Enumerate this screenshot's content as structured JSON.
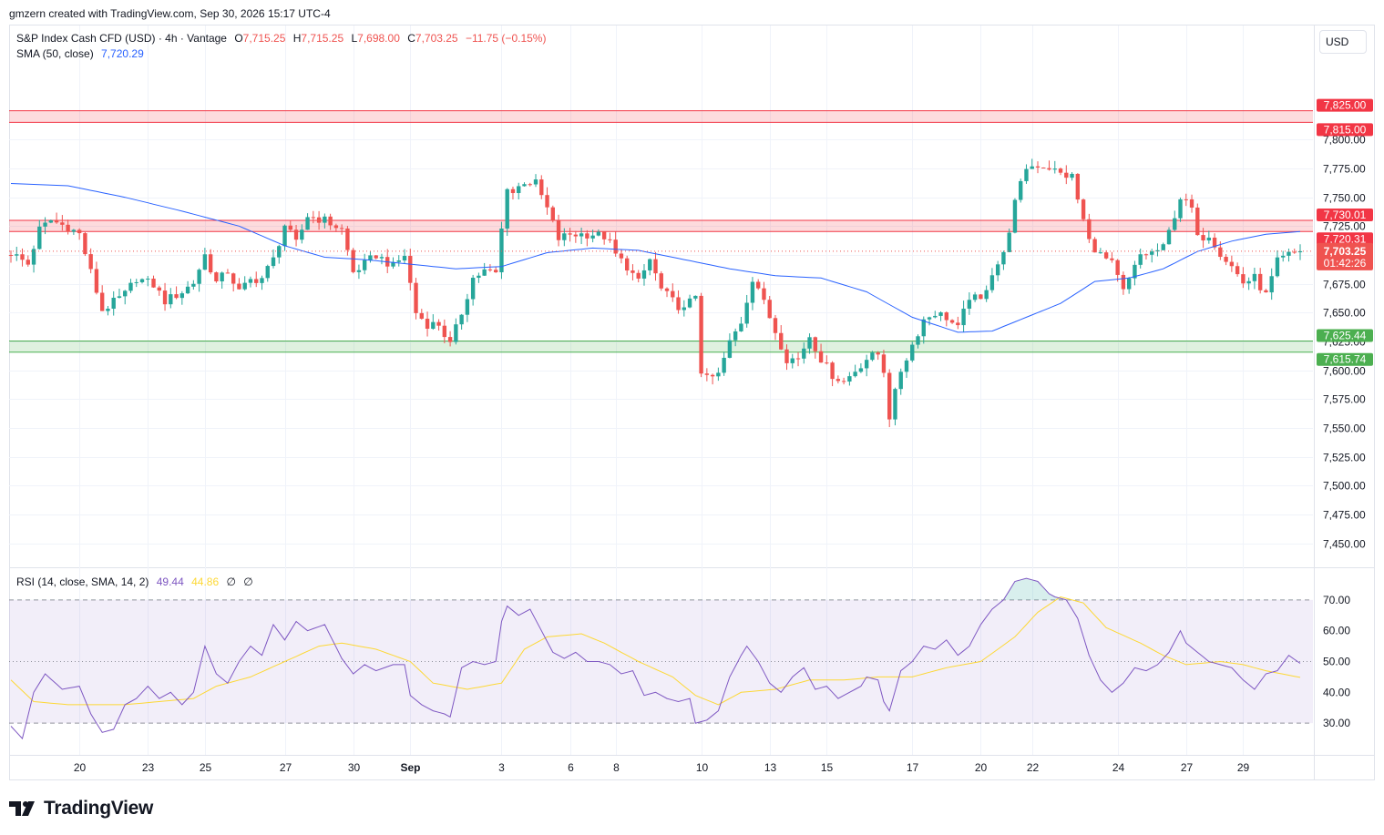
{
  "header": {
    "attribution": "gmzern created with TradingView.com, Sep 30, 2026 15:17 UTC-4",
    "symbol": "S&P Index Cash CFD (USD) · 4h · Vantage",
    "ohlc": {
      "o_label": "O",
      "o": "7,715.25",
      "h_label": "H",
      "h": "7,715.25",
      "l_label": "L",
      "l": "7,698.00",
      "c_label": "C",
      "c": "7,703.25",
      "change": "−11.75 (−0.15%)"
    },
    "sma_label": "SMA (50, close)",
    "sma_value": "7,720.29"
  },
  "rsi_legend": {
    "label": "RSI (14, close, SMA, 14, 2)",
    "rsi_value": "49.44",
    "rsi_sma_value": "44.86",
    "extra1": "∅",
    "extra2": "∅"
  },
  "currency_button": "USD",
  "brand": "TradingView",
  "colors": {
    "up": "#26a69a",
    "down": "#ef5350",
    "sma": "#2962ff",
    "rsi": "#7e57c2",
    "rsi_sma": "#fdd835",
    "resistance_zone": "#f23645",
    "support_zone": "#4caf50"
  },
  "chart_data": [
    {
      "type": "candlestick",
      "title": "",
      "ylim": [
        7430,
        7850
      ],
      "yticks": [
        "7,450.00",
        "7,475.00",
        "7,500.00",
        "7,525.00",
        "7,550.00",
        "7,575.00",
        "7,600.00",
        "7,625.00",
        "7,650.00",
        "7,675.00",
        "7,700.00",
        "7,725.00",
        "7,750.00",
        "7,775.00",
        "7,800.00"
      ],
      "ytick_values": [
        7450,
        7475,
        7500,
        7525,
        7550,
        7575,
        7600,
        7625,
        7650,
        7675,
        7700,
        7725,
        7750,
        7775,
        7800
      ],
      "x_labels": [
        {
          "label": "20",
          "index": 12
        },
        {
          "label": "23",
          "index": 24
        },
        {
          "label": "25",
          "index": 34
        },
        {
          "label": "27",
          "index": 48
        },
        {
          "label": "30",
          "index": 60
        },
        {
          "label": "Sep",
          "index": 70
        },
        {
          "label": "3",
          "index": 86
        },
        {
          "label": "6",
          "index": 98
        },
        {
          "label": "8",
          "index": 106
        },
        {
          "label": "10",
          "index": 121
        },
        {
          "label": "13",
          "index": 133
        },
        {
          "label": "15",
          "index": 143
        },
        {
          "label": "17",
          "index": 158
        },
        {
          "label": "20",
          "index": 170
        },
        {
          "label": "22",
          "index": 179
        },
        {
          "label": "24",
          "index": 194
        },
        {
          "label": "27",
          "index": 206
        },
        {
          "label": "29",
          "index": 216
        }
      ],
      "zones": [
        {
          "kind": "resistance",
          "low": 7815.0,
          "high": 7825.0,
          "low_label": "7,815.00",
          "high_label": "7,825.00"
        },
        {
          "kind": "resistance",
          "low": 7720.31,
          "high": 7730.01,
          "low_label": "7,720.31",
          "high_label": "7,730.01"
        },
        {
          "kind": "support",
          "low": 7615.74,
          "high": 7625.44,
          "low_label": "7,615.74",
          "high_label": "7,625.44"
        }
      ],
      "last_price": 7703.25,
      "last_price_label": "7,703.25",
      "countdown": "01:42:26",
      "sma50_anchors": [
        [
          0,
          7762
        ],
        [
          10,
          7760
        ],
        [
          20,
          7750
        ],
        [
          30,
          7738
        ],
        [
          40,
          7725
        ],
        [
          48,
          7708
        ],
        [
          55,
          7698
        ],
        [
          62,
          7696
        ],
        [
          70,
          7692
        ],
        [
          78,
          7688
        ],
        [
          86,
          7690
        ],
        [
          94,
          7702
        ],
        [
          102,
          7706
        ],
        [
          110,
          7704
        ],
        [
          118,
          7696
        ],
        [
          126,
          7688
        ],
        [
          134,
          7682
        ],
        [
          142,
          7680
        ],
        [
          150,
          7668
        ],
        [
          158,
          7646
        ],
        [
          166,
          7633
        ],
        [
          172,
          7634
        ],
        [
          178,
          7646
        ],
        [
          184,
          7658
        ],
        [
          190,
          7677
        ],
        [
          196,
          7680
        ],
        [
          202,
          7688
        ],
        [
          208,
          7703
        ],
        [
          214,
          7712
        ],
        [
          220,
          7718
        ],
        [
          226,
          7720.3
        ]
      ],
      "candle_anchors": [
        [
          0,
          7702
        ],
        [
          3,
          7692
        ],
        [
          5,
          7722
        ],
        [
          7,
          7730
        ],
        [
          10,
          7724
        ],
        [
          12,
          7718
        ],
        [
          14,
          7685
        ],
        [
          16,
          7652
        ],
        [
          20,
          7666
        ],
        [
          22,
          7680
        ],
        [
          25,
          7674
        ],
        [
          27,
          7660
        ],
        [
          30,
          7668
        ],
        [
          32,
          7676
        ],
        [
          34,
          7700
        ],
        [
          36,
          7676
        ],
        [
          38,
          7686
        ],
        [
          40,
          7668
        ],
        [
          42,
          7678
        ],
        [
          44,
          7680
        ],
        [
          46,
          7696
        ],
        [
          48,
          7726
        ],
        [
          50,
          7710
        ],
        [
          52,
          7734
        ],
        [
          55,
          7730
        ],
        [
          58,
          7722
        ],
        [
          60,
          7685
        ],
        [
          62,
          7692
        ],
        [
          64,
          7700
        ],
        [
          67,
          7690
        ],
        [
          69,
          7700
        ],
        [
          71,
          7650
        ],
        [
          73,
          7640
        ],
        [
          75,
          7640
        ],
        [
          77,
          7622
        ],
        [
          79,
          7650
        ],
        [
          81,
          7680
        ],
        [
          83,
          7686
        ],
        [
          85,
          7684
        ],
        [
          86,
          7722
        ],
        [
          87,
          7760
        ],
        [
          88,
          7754
        ],
        [
          90,
          7764
        ],
        [
          92,
          7762
        ],
        [
          94,
          7740
        ],
        [
          96,
          7714
        ],
        [
          98,
          7718
        ],
        [
          102,
          7718
        ],
        [
          104,
          7716
        ],
        [
          105,
          7710
        ],
        [
          106,
          7700
        ],
        [
          108,
          7690
        ],
        [
          110,
          7676
        ],
        [
          112,
          7696
        ],
        [
          114,
          7670
        ],
        [
          116,
          7660
        ],
        [
          118,
          7652
        ],
        [
          120,
          7666
        ],
        [
          121,
          7600
        ],
        [
          122,
          7592
        ],
        [
          124,
          7596
        ],
        [
          126,
          7624
        ],
        [
          128,
          7642
        ],
        [
          130,
          7680
        ],
        [
          131,
          7672
        ],
        [
          132,
          7658
        ],
        [
          134,
          7634
        ],
        [
          136,
          7610
        ],
        [
          138,
          7610
        ],
        [
          140,
          7630
        ],
        [
          142,
          7610
        ],
        [
          144,
          7596
        ],
        [
          146,
          7590
        ],
        [
          148,
          7600
        ],
        [
          150,
          7610
        ],
        [
          152,
          7614
        ],
        [
          153,
          7600
        ],
        [
          154,
          7560
        ],
        [
          156,
          7600
        ],
        [
          158,
          7622
        ],
        [
          160,
          7644
        ],
        [
          162,
          7650
        ],
        [
          164,
          7646
        ],
        [
          166,
          7636
        ],
        [
          168,
          7664
        ],
        [
          170,
          7660
        ],
        [
          172,
          7685
        ],
        [
          174,
          7700
        ],
        [
          176,
          7745
        ],
        [
          178,
          7776
        ],
        [
          180,
          7778
        ],
        [
          182,
          7776
        ],
        [
          184,
          7770
        ],
        [
          186,
          7768
        ],
        [
          187,
          7748
        ],
        [
          189,
          7712
        ],
        [
          191,
          7700
        ],
        [
          193,
          7692
        ],
        [
          195,
          7668
        ],
        [
          196,
          7678
        ],
        [
          198,
          7700
        ],
        [
          200,
          7702
        ],
        [
          202,
          7706
        ],
        [
          203,
          7720
        ],
        [
          205,
          7750
        ],
        [
          207,
          7740
        ],
        [
          208,
          7714
        ],
        [
          210,
          7718
        ],
        [
          212,
          7702
        ],
        [
          214,
          7690
        ],
        [
          216,
          7676
        ],
        [
          218,
          7680
        ],
        [
          220,
          7665
        ],
        [
          222,
          7694
        ],
        [
          224,
          7700
        ],
        [
          226,
          7703.25
        ]
      ],
      "candle_count": 227
    },
    {
      "type": "line",
      "title": "",
      "ylim": [
        20,
        80
      ],
      "yticks": [
        "30.00",
        "40.00",
        "50.00",
        "60.00",
        "70.00"
      ],
      "ytick_values": [
        30,
        40,
        50,
        60,
        70
      ],
      "bands": {
        "upper": 70,
        "middle": 50,
        "lower": 30
      },
      "rsi_anchors": [
        [
          0,
          29
        ],
        [
          2,
          25
        ],
        [
          4,
          40
        ],
        [
          6,
          46
        ],
        [
          9,
          41
        ],
        [
          12,
          42
        ],
        [
          14,
          33
        ],
        [
          16,
          27
        ],
        [
          18,
          28
        ],
        [
          20,
          36
        ],
        [
          22,
          38
        ],
        [
          24,
          42
        ],
        [
          26,
          38
        ],
        [
          28,
          40
        ],
        [
          30,
          36
        ],
        [
          32,
          40
        ],
        [
          34,
          55
        ],
        [
          36,
          46
        ],
        [
          38,
          43
        ],
        [
          40,
          50
        ],
        [
          42,
          55
        ],
        [
          44,
          52
        ],
        [
          46,
          62
        ],
        [
          48,
          57
        ],
        [
          50,
          63
        ],
        [
          52,
          60
        ],
        [
          55,
          62
        ],
        [
          58,
          51
        ],
        [
          60,
          46
        ],
        [
          62,
          49
        ],
        [
          64,
          47
        ],
        [
          67,
          49
        ],
        [
          69,
          49
        ],
        [
          70,
          39
        ],
        [
          72,
          36
        ],
        [
          74,
          34
        ],
        [
          76,
          33
        ],
        [
          77,
          32
        ],
        [
          79,
          48
        ],
        [
          81,
          50
        ],
        [
          83,
          49
        ],
        [
          85,
          50
        ],
        [
          86,
          63
        ],
        [
          87,
          68
        ],
        [
          89,
          65
        ],
        [
          91,
          67
        ],
        [
          93,
          60
        ],
        [
          95,
          53
        ],
        [
          97,
          51
        ],
        [
          99,
          53
        ],
        [
          101,
          50
        ],
        [
          103,
          50
        ],
        [
          105,
          49
        ],
        [
          107,
          46
        ],
        [
          109,
          47
        ],
        [
          111,
          39
        ],
        [
          113,
          40
        ],
        [
          115,
          38
        ],
        [
          117,
          37
        ],
        [
          119,
          38
        ],
        [
          120,
          30
        ],
        [
          122,
          31
        ],
        [
          124,
          34
        ],
        [
          126,
          45
        ],
        [
          128,
          52
        ],
        [
          129,
          55
        ],
        [
          131,
          50
        ],
        [
          133,
          43
        ],
        [
          135,
          40
        ],
        [
          137,
          45
        ],
        [
          139,
          48
        ],
        [
          141,
          41
        ],
        [
          143,
          42
        ],
        [
          145,
          38
        ],
        [
          147,
          40
        ],
        [
          149,
          42
        ],
        [
          150,
          45
        ],
        [
          152,
          44
        ],
        [
          153,
          37
        ],
        [
          154,
          34
        ],
        [
          156,
          47
        ],
        [
          158,
          50
        ],
        [
          160,
          55
        ],
        [
          162,
          54
        ],
        [
          164,
          57
        ],
        [
          166,
          52
        ],
        [
          168,
          55
        ],
        [
          170,
          62
        ],
        [
          172,
          67
        ],
        [
          174,
          70
        ],
        [
          176,
          76
        ],
        [
          178,
          77
        ],
        [
          180,
          76
        ],
        [
          182,
          72
        ],
        [
          183,
          71
        ],
        [
          185,
          70
        ],
        [
          187,
          64
        ],
        [
          189,
          52
        ],
        [
          191,
          44
        ],
        [
          193,
          40
        ],
        [
          195,
          43
        ],
        [
          197,
          48
        ],
        [
          199,
          47
        ],
        [
          201,
          49
        ],
        [
          203,
          53
        ],
        [
          205,
          60
        ],
        [
          206,
          56
        ],
        [
          208,
          53
        ],
        [
          210,
          50
        ],
        [
          212,
          49
        ],
        [
          214,
          48
        ],
        [
          216,
          44
        ],
        [
          218,
          41
        ],
        [
          220,
          46
        ],
        [
          222,
          47
        ],
        [
          224,
          52
        ],
        [
          226,
          49.44
        ]
      ],
      "rsi_sma_anchors": [
        [
          0,
          44
        ],
        [
          4,
          37
        ],
        [
          10,
          36
        ],
        [
          16,
          36
        ],
        [
          20,
          36
        ],
        [
          26,
          37
        ],
        [
          32,
          38
        ],
        [
          36,
          42
        ],
        [
          42,
          45
        ],
        [
          48,
          50
        ],
        [
          54,
          55
        ],
        [
          58,
          56
        ],
        [
          64,
          54
        ],
        [
          70,
          50
        ],
        [
          74,
          43
        ],
        [
          80,
          41
        ],
        [
          86,
          43
        ],
        [
          90,
          54
        ],
        [
          94,
          58
        ],
        [
          100,
          59
        ],
        [
          104,
          56
        ],
        [
          110,
          50
        ],
        [
          116,
          45
        ],
        [
          120,
          39
        ],
        [
          124,
          36
        ],
        [
          128,
          40
        ],
        [
          134,
          41
        ],
        [
          140,
          44
        ],
        [
          146,
          44
        ],
        [
          152,
          45
        ],
        [
          158,
          45
        ],
        [
          164,
          48
        ],
        [
          170,
          50
        ],
        [
          176,
          58
        ],
        [
          180,
          66
        ],
        [
          184,
          71
        ],
        [
          188,
          69
        ],
        [
          192,
          61
        ],
        [
          198,
          56
        ],
        [
          202,
          52
        ],
        [
          206,
          49
        ],
        [
          212,
          50
        ],
        [
          216,
          49
        ],
        [
          220,
          47
        ],
        [
          226,
          44.86
        ]
      ]
    }
  ]
}
